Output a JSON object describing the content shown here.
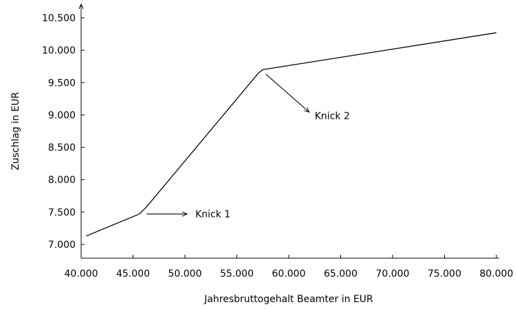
{
  "chart_data": {
    "type": "line",
    "title": "",
    "xlabel": "Jahresbruttogehalt Beamter in EUR",
    "ylabel": "Zuschlag in EUR",
    "xlim": [
      40000,
      80000
    ],
    "ylim": [
      7000,
      10500
    ],
    "x_ticks": [
      40000,
      45000,
      50000,
      55000,
      60000,
      65000,
      70000,
      75000,
      80000
    ],
    "x_tick_labels": [
      "40.000",
      "45.000",
      "50.000",
      "55.000",
      "60.000",
      "65.000",
      "70.000",
      "75.000",
      "80.000"
    ],
    "y_ticks": [
      7000,
      7500,
      8000,
      8500,
      9000,
      9500,
      10000,
      10500
    ],
    "y_tick_labels": [
      "7.000",
      "7.500",
      "8.000",
      "8.500",
      "9.000",
      "9.500",
      "10.000",
      "10.500"
    ],
    "grid": false,
    "series": [
      {
        "x": [
          40500,
          45600,
          46300,
          57100,
          57500,
          80000
        ],
        "y": [
          7130,
          7470,
          7580,
          9650,
          9700,
          10270
        ]
      }
    ],
    "annotations": [
      {
        "text": "Knick 1",
        "point": [
          46300,
          7470
        ],
        "text_at": [
          51000,
          7470
        ]
      },
      {
        "text": "Knick 2",
        "point": [
          57800,
          9630
        ],
        "text_at": [
          62500,
          8990
        ]
      }
    ]
  }
}
